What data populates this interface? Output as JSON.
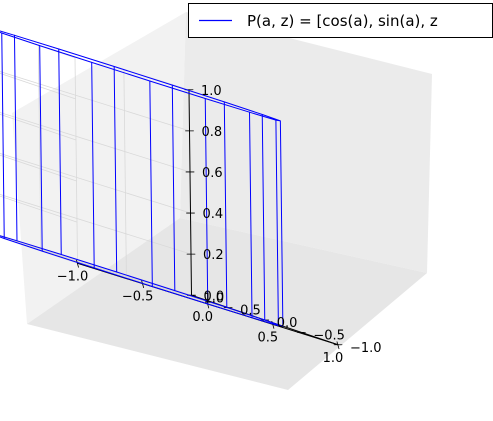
{
  "chart_data": {
    "type": "line",
    "projection": "3d",
    "surface": "wireframe cylinder of radius 1 with 16 vertical lines",
    "series": [
      {
        "name": "P(a, z) = [cos(a), sin(a), z",
        "color": "#0000ff",
        "radius": 1,
        "z": [
          0,
          1
        ],
        "segments": 16
      }
    ],
    "x": {
      "ticks": [
        -1.0,
        -0.5,
        0.0,
        0.5,
        1.0
      ],
      "tick_labels": [
        "−1.0",
        "−0.5",
        "0.0",
        "0.5",
        "1.0"
      ],
      "range": [
        -1,
        1
      ]
    },
    "y": {
      "ticks": [
        -1.0,
        -0.5,
        0.0,
        0.5,
        1.0
      ],
      "tick_labels": [
        "−1.0",
        "−0.5",
        "0.0",
        "0.5",
        "1.0"
      ],
      "range": [
        -1,
        1
      ]
    },
    "z": {
      "ticks": [
        0.0,
        0.2,
        0.4,
        0.6,
        0.8,
        1.0
      ],
      "tick_labels": [
        "0.0",
        "0.2",
        "0.4",
        "0.6",
        "0.8",
        "1.0"
      ],
      "range": [
        0,
        1
      ]
    },
    "grid": true,
    "legend_position": "top-right",
    "colors": {
      "line": "#0000ff",
      "pane_left": "#f2f2f2",
      "pane_back": "#ebebeb",
      "pane_floor": "#e6e6e6",
      "grid": "#d9d9d9"
    }
  }
}
